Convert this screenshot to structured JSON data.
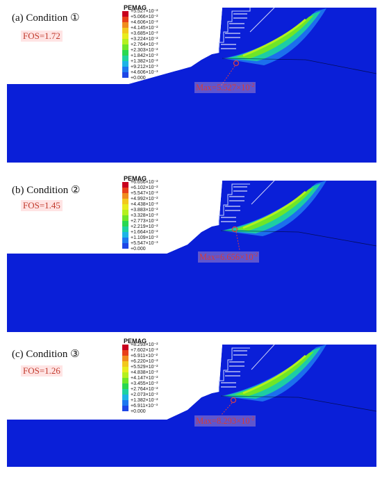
{
  "legend_title": "PEMAG",
  "panels": [
    {
      "label": "(a) Condition ①",
      "fos": "FOS=1.72",
      "max_label": "Max=5.527×10",
      "max_exp": "-2",
      "legend": [
        "+5.527×10⁻²",
        "+5.066×10⁻²",
        "+4.606×10⁻²",
        "+4.145×10⁻²",
        "+3.685×10⁻²",
        "+3.224×10⁻²",
        "+2.764×10⁻²",
        "+2.303×10⁻²",
        "+1.842×10⁻²",
        "+1.382×10⁻²",
        "+9.212×10⁻³",
        "+4.606×10⁻³",
        "+0.000"
      ]
    },
    {
      "label": "(b) Condition ②",
      "fos": "FOS=1.45",
      "max_label": "Max=6.656×10",
      "max_exp": "-2",
      "legend": [
        "+6.656×10⁻²",
        "+6.102×10⁻²",
        "+5.547×10⁻²",
        "+4.992×10⁻²",
        "+4.438×10⁻²",
        "+3.883×10⁻²",
        "+3.328×10⁻²",
        "+2.773×10⁻²",
        "+2.219×10⁻²",
        "+1.664×10⁻²",
        "+1.109×10⁻²",
        "+5.547×10⁻³",
        "+0.000"
      ]
    },
    {
      "label": "(c) Condition ③",
      "fos": "FOS=1.26",
      "max_label": "Max=8.293×10",
      "max_exp": "-2",
      "legend": [
        "+8.293×10⁻²",
        "+7.602×10⁻²",
        "+6.911×10⁻²",
        "+6.220×10⁻²",
        "+5.529×10⁻²",
        "+4.838×10⁻²",
        "+4.147×10⁻²",
        "+3.455×10⁻²",
        "+2.764×10⁻²",
        "+2.073×10⁻²",
        "+1.382×10⁻²",
        "+6.911×10⁻³",
        "+0.000"
      ]
    }
  ],
  "colors": {
    "background_soil": "#0a1fd8",
    "scale": [
      "#c8001e",
      "#e8401a",
      "#f08c1e",
      "#f2c81e",
      "#e8ec1e",
      "#b4f01e",
      "#6ee628",
      "#28d850",
      "#1ed2a0",
      "#1eb4e6",
      "#1e78f0",
      "#1e46e6",
      "#0a1fd8"
    ]
  }
}
